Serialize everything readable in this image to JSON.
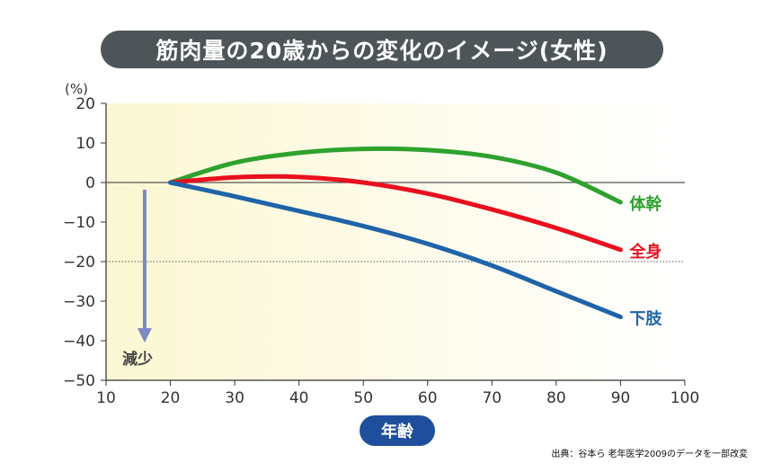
{
  "chart_data": {
    "type": "line",
    "title": "筋肉量の20歳からの変化のイメージ(女性)",
    "xlabel": "年齢",
    "ylabel": "(%)",
    "xlim": [
      10,
      100
    ],
    "ylim": [
      -50,
      20
    ],
    "xticks": [
      "10",
      "20",
      "30",
      "40",
      "50",
      "60",
      "70",
      "80",
      "90",
      "100"
    ],
    "yticks": [
      "20",
      "10",
      "0",
      "−10",
      "−20",
      "−30",
      "−40",
      "−50"
    ],
    "reference_lines": [
      {
        "y": 0,
        "style": "solid"
      },
      {
        "y": -20,
        "style": "dotted"
      }
    ],
    "annotation": {
      "text": "減少",
      "arrow_from": 0,
      "arrow_to": -40,
      "x": 16
    },
    "x": [
      20,
      30,
      40,
      50,
      60,
      70,
      80,
      90
    ],
    "series": [
      {
        "name": "体幹",
        "color": "#2ea12e",
        "values": [
          0,
          5,
          7.5,
          8.5,
          8.2,
          6.5,
          2.5,
          -5
        ]
      },
      {
        "name": "全身",
        "color": "#e8101e",
        "values": [
          0,
          1.3,
          1.4,
          0,
          -2.8,
          -6.8,
          -11.5,
          -17
        ]
      },
      {
        "name": "下肢",
        "color": "#1f63a8",
        "values": [
          0,
          -3.5,
          -7.2,
          -11,
          -15.5,
          -21,
          -27.5,
          -34
        ]
      }
    ],
    "grid": false,
    "legend": "inline-right"
  },
  "source": "出典：谷本ら 老年医学2009のデータを一部改変"
}
